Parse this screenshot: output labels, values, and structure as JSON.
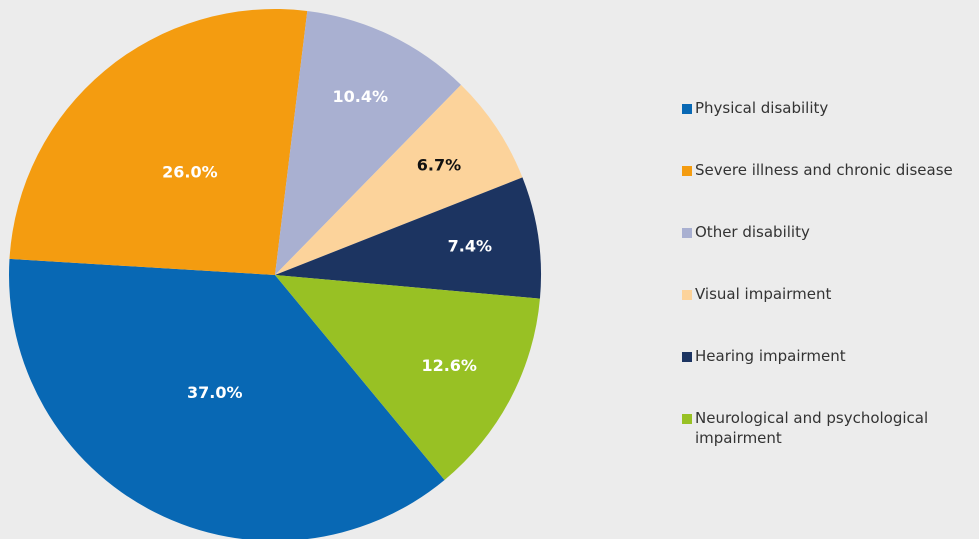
{
  "chart_data": {
    "type": "pie",
    "categories": [
      "Physical disability",
      "Severe illness and chronic disease",
      "Other disability",
      "Visual impairment",
      "Hearing impairment",
      "Neurological and psychological impairment"
    ],
    "values": [
      37.0,
      26.0,
      10.4,
      6.7,
      7.4,
      12.6
    ],
    "value_labels": [
      "37.0%",
      "26.0%",
      "10.4%",
      "6.7%",
      "7.4%",
      "12.6%"
    ],
    "colors": [
      "#0868b4",
      "#f49c10",
      "#a9b0d1",
      "#fcd39b",
      "#1c3461",
      "#98c124"
    ],
    "value_label_colors": [
      "#ffffff",
      "#ffffff",
      "#ffffff",
      "#111111",
      "#ffffff",
      "#ffffff"
    ],
    "legend": "right"
  }
}
